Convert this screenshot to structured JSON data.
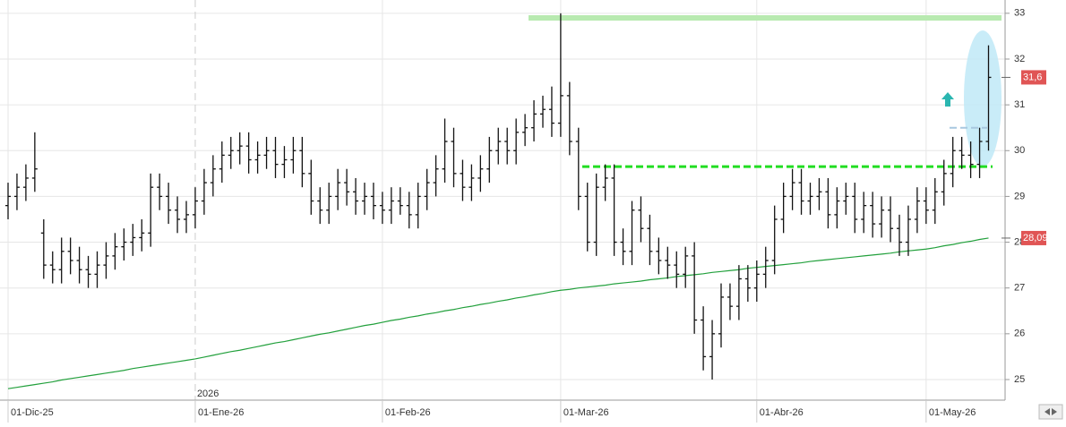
{
  "chart_data": {
    "type": "ohlc",
    "categories": [
      "01-Dic-25",
      null,
      null,
      null,
      null,
      null,
      null,
      null,
      null,
      null,
      null,
      null,
      null,
      null,
      null,
      null,
      null,
      null,
      null,
      null,
      null,
      "01-Ene-26",
      null,
      null,
      null,
      null,
      null,
      null,
      null,
      null,
      null,
      null,
      null,
      null,
      null,
      null,
      null,
      null,
      null,
      null,
      null,
      null,
      "01-Feb-26",
      null,
      null,
      null,
      null,
      null,
      null,
      null,
      null,
      null,
      null,
      null,
      null,
      null,
      null,
      null,
      null,
      null,
      null,
      null,
      "01-Mar-26",
      null,
      null,
      null,
      null,
      null,
      null,
      null,
      null,
      null,
      null,
      null,
      null,
      null,
      null,
      null,
      null,
      null,
      null,
      null,
      null,
      null,
      "01-Abr-26",
      null,
      null,
      null,
      null,
      null,
      null,
      null,
      null,
      null,
      null,
      null,
      null,
      null,
      null,
      null,
      null,
      null,
      null,
      "01-May-26",
      null,
      null,
      null,
      null,
      null,
      null,
      null
    ],
    "open": [
      28.8,
      29.0,
      29.2,
      29.4,
      28.2,
      27.5,
      27.4,
      27.8,
      27.6,
      27.4,
      27.3,
      27.5,
      27.7,
      27.9,
      28.0,
      28.1,
      28.2,
      29.2,
      29.0,
      28.7,
      28.5,
      28.6,
      28.9,
      29.3,
      29.6,
      29.9,
      30.0,
      30.1,
      29.8,
      29.9,
      30.0,
      29.7,
      29.8,
      30.0,
      29.5,
      28.9,
      28.7,
      29.0,
      29.3,
      29.1,
      28.9,
      29.0,
      28.8,
      28.7,
      28.9,
      28.8,
      28.6,
      29.0,
      29.3,
      29.6,
      30.2,
      29.5,
      29.2,
      29.4,
      29.6,
      30.0,
      30.2,
      30.0,
      30.4,
      30.5,
      30.8,
      30.9,
      30.6,
      31.2,
      30.2,
      29.0,
      28.0,
      29.2,
      29.4,
      28.0,
      27.8,
      28.7,
      28.3,
      27.8,
      27.6,
      27.5,
      27.3,
      27.7,
      26.3,
      25.5,
      26.0,
      26.8,
      26.6,
      27.2,
      27.0,
      27.3,
      27.6,
      28.5,
      29.0,
      29.3,
      28.9,
      29.0,
      29.1,
      28.6,
      28.9,
      29.0,
      28.5,
      28.8,
      28.4,
      28.7,
      28.3,
      28.0,
      28.5,
      28.9,
      28.7,
      29.1,
      29.5,
      30.0,
      29.9,
      29.7,
      30.2
    ],
    "high": [
      29.3,
      29.5,
      29.7,
      30.4,
      28.5,
      27.8,
      28.1,
      28.1,
      27.9,
      27.7,
      27.8,
      28.0,
      28.2,
      28.3,
      28.4,
      28.5,
      29.5,
      29.5,
      29.3,
      29.0,
      28.9,
      29.2,
      29.6,
      29.9,
      30.2,
      30.3,
      30.4,
      30.4,
      30.2,
      30.3,
      30.3,
      30.1,
      30.3,
      30.3,
      29.8,
      29.2,
      29.3,
      29.6,
      29.6,
      29.4,
      29.3,
      29.3,
      29.1,
      29.2,
      29.2,
      29.1,
      29.3,
      29.6,
      29.9,
      30.7,
      30.5,
      29.8,
      29.7,
      29.9,
      30.3,
      30.5,
      30.5,
      30.7,
      30.8,
      31.1,
      31.2,
      31.4,
      33.0,
      31.5,
      30.5,
      29.3,
      29.5,
      29.7,
      29.7,
      28.3,
      28.9,
      29.0,
      28.6,
      28.1,
      27.9,
      27.8,
      27.9,
      28.0,
      26.6,
      26.3,
      27.1,
      27.1,
      27.5,
      27.5,
      27.6,
      27.9,
      28.8,
      29.3,
      29.6,
      29.6,
      29.3,
      29.4,
      29.4,
      29.2,
      29.3,
      29.3,
      29.1,
      29.1,
      29.0,
      29.0,
      28.6,
      28.8,
      29.2,
      29.2,
      29.4,
      29.8,
      30.3,
      30.3,
      30.2,
      30.5,
      32.3
    ],
    "low": [
      28.5,
      28.7,
      28.9,
      29.1,
      27.2,
      27.1,
      27.1,
      27.3,
      27.1,
      27.0,
      27.0,
      27.2,
      27.4,
      27.6,
      27.7,
      27.8,
      27.9,
      28.7,
      28.4,
      28.2,
      28.2,
      28.3,
      28.6,
      29.0,
      29.3,
      29.6,
      29.7,
      29.5,
      29.5,
      29.6,
      29.4,
      29.4,
      29.5,
      29.2,
      28.6,
      28.4,
      28.4,
      28.7,
      28.8,
      28.6,
      28.6,
      28.5,
      28.4,
      28.4,
      28.6,
      28.3,
      28.3,
      28.7,
      29.0,
      29.3,
      29.2,
      28.9,
      28.9,
      29.1,
      29.3,
      29.7,
      29.7,
      29.7,
      30.1,
      30.2,
      30.5,
      30.3,
      30.3,
      29.9,
      28.7,
      27.8,
      27.7,
      28.9,
      27.7,
      27.5,
      27.5,
      28.0,
      27.5,
      27.3,
      27.2,
      27.0,
      27.0,
      26.0,
      25.2,
      25.0,
      25.7,
      26.3,
      26.3,
      26.7,
      26.7,
      27.0,
      27.3,
      28.2,
      28.7,
      28.6,
      28.6,
      28.7,
      28.3,
      28.3,
      28.6,
      28.2,
      28.2,
      28.1,
      28.1,
      28.0,
      27.7,
      27.7,
      28.2,
      28.4,
      28.4,
      28.8,
      29.2,
      29.6,
      29.4,
      29.4,
      30.0
    ],
    "close": [
      29.0,
      29.2,
      29.4,
      29.6,
      27.5,
      27.4,
      27.8,
      27.6,
      27.4,
      27.3,
      27.5,
      27.7,
      27.9,
      28.0,
      28.1,
      28.2,
      29.2,
      29.0,
      28.7,
      28.5,
      28.6,
      28.9,
      29.3,
      29.6,
      29.9,
      30.0,
      30.1,
      29.8,
      29.9,
      30.0,
      29.7,
      29.8,
      30.0,
      29.5,
      28.9,
      28.7,
      29.0,
      29.3,
      29.1,
      28.9,
      29.0,
      28.8,
      28.7,
      28.9,
      28.8,
      28.6,
      29.0,
      29.3,
      29.6,
      30.2,
      29.5,
      29.2,
      29.4,
      29.6,
      30.0,
      30.2,
      30.0,
      30.4,
      30.5,
      30.8,
      30.9,
      30.6,
      31.2,
      30.2,
      29.0,
      28.0,
      29.2,
      29.4,
      28.0,
      27.8,
      28.7,
      28.3,
      27.8,
      27.6,
      27.5,
      27.3,
      27.7,
      26.3,
      25.5,
      26.0,
      26.8,
      26.6,
      27.2,
      27.0,
      27.3,
      27.6,
      28.5,
      29.0,
      29.3,
      28.9,
      29.0,
      29.1,
      28.6,
      28.9,
      29.0,
      28.5,
      28.8,
      28.4,
      28.7,
      28.3,
      28.0,
      28.5,
      28.9,
      28.7,
      29.1,
      29.5,
      30.0,
      29.9,
      29.7,
      30.2,
      31.6
    ],
    "color": "#111111",
    "moving_average": {
      "color": "#22a03c",
      "values": [
        24.8,
        24.83,
        24.86,
        24.89,
        24.92,
        24.95,
        24.99,
        25.02,
        25.05,
        25.08,
        25.11,
        25.14,
        25.17,
        25.2,
        25.24,
        25.27,
        25.3,
        25.33,
        25.36,
        25.39,
        25.42,
        25.45,
        25.49,
        25.53,
        25.57,
        25.61,
        25.64,
        25.68,
        25.72,
        25.76,
        25.8,
        25.83,
        25.87,
        25.91,
        25.95,
        25.99,
        26.02,
        26.06,
        26.1,
        26.14,
        26.18,
        26.21,
        26.25,
        26.29,
        26.32,
        26.36,
        26.39,
        26.43,
        26.46,
        26.5,
        26.53,
        26.57,
        26.6,
        26.64,
        26.67,
        26.71,
        26.74,
        26.78,
        26.81,
        26.85,
        26.88,
        26.92,
        26.95,
        26.97,
        27.0,
        27.02,
        27.04,
        27.06,
        27.09,
        27.11,
        27.13,
        27.15,
        27.18,
        27.2,
        27.22,
        27.25,
        27.27,
        27.29,
        27.31,
        27.34,
        27.36,
        27.38,
        27.4,
        27.43,
        27.45,
        27.47,
        27.49,
        27.51,
        27.53,
        27.55,
        27.58,
        27.6,
        27.62,
        27.64,
        27.66,
        27.68,
        27.7,
        27.72,
        27.74,
        27.76,
        27.79,
        27.81,
        27.83,
        27.85,
        27.88,
        27.92,
        27.95,
        27.99,
        28.02,
        28.06,
        28.09
      ]
    },
    "ylim": [
      24.55,
      33.29
    ],
    "yticks": [
      25,
      26,
      27,
      28,
      29,
      30,
      31,
      32,
      33
    ],
    "grid": true,
    "year_label": "2026",
    "levels": [
      {
        "value": 32.9,
        "color": "#b8eab0",
        "style": "solid"
      },
      {
        "value": 29.65,
        "color": "#22dd22",
        "style": "dashed"
      },
      {
        "value": 30.5,
        "color": "#a8c8e0",
        "style": "dashed"
      }
    ],
    "price_tags": [
      {
        "value": 31.6,
        "label": "31,6",
        "color": "#e05555"
      },
      {
        "value": 28.09,
        "label": "28,09",
        "color": "#e05555"
      }
    ]
  }
}
